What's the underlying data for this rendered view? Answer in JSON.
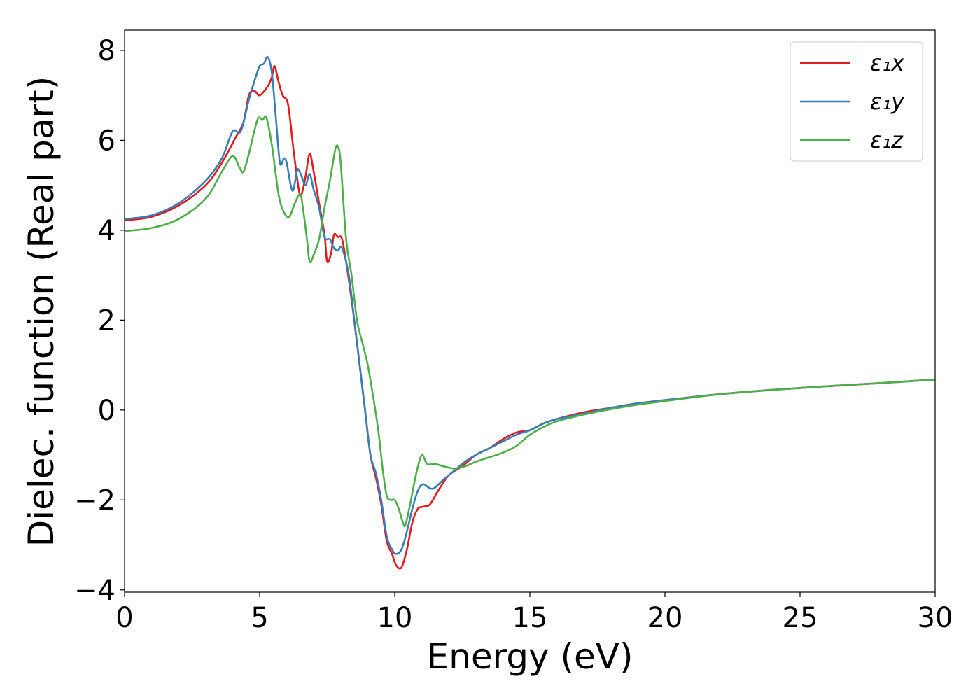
{
  "chart_data": {
    "type": "line",
    "xlabel": "Energy (eV)",
    "ylabel": "Dielec. function (Real part)",
    "xlim": [
      0,
      30
    ],
    "ylim": [
      -4.05,
      8.45
    ],
    "xticks": [
      0,
      5,
      10,
      15,
      20,
      25,
      30
    ],
    "xtick_labels": [
      "0",
      "5",
      "10",
      "15",
      "20",
      "25",
      "30"
    ],
    "yticks": [
      -4,
      -2,
      0,
      2,
      4,
      6,
      8
    ],
    "ytick_labels": [
      "−4",
      "−2",
      "0",
      "2",
      "4",
      "6",
      "8"
    ],
    "grid": false,
    "legend_position": "top-right",
    "series": [
      {
        "name": "ε₁x",
        "color": "#e41a1c",
        "points": [
          [
            0,
            4.22
          ],
          [
            1,
            4.3
          ],
          [
            2,
            4.55
          ],
          [
            3,
            5.0
          ],
          [
            3.6,
            5.5
          ],
          [
            4.1,
            6.05
          ],
          [
            4.4,
            6.4
          ],
          [
            4.6,
            7.0
          ],
          [
            4.8,
            7.1
          ],
          [
            5.0,
            7.0
          ],
          [
            5.3,
            7.2
          ],
          [
            5.45,
            7.4
          ],
          [
            5.55,
            7.65
          ],
          [
            5.7,
            7.3
          ],
          [
            5.85,
            7.0
          ],
          [
            6.05,
            6.8
          ],
          [
            6.25,
            5.8
          ],
          [
            6.45,
            4.9
          ],
          [
            6.55,
            4.8
          ],
          [
            6.7,
            5.2
          ],
          [
            6.85,
            5.7
          ],
          [
            7.0,
            5.3
          ],
          [
            7.2,
            4.6
          ],
          [
            7.4,
            3.9
          ],
          [
            7.5,
            3.3
          ],
          [
            7.65,
            3.5
          ],
          [
            7.75,
            3.9
          ],
          [
            7.9,
            3.85
          ],
          [
            8.05,
            3.8
          ],
          [
            8.25,
            3.1
          ],
          [
            8.5,
            2.0
          ],
          [
            8.7,
            1.0
          ],
          [
            8.9,
            0.0
          ],
          [
            9.1,
            -1.0
          ],
          [
            9.3,
            -1.5
          ],
          [
            9.5,
            -2.1
          ],
          [
            9.7,
            -2.9
          ],
          [
            9.9,
            -3.2
          ],
          [
            10.05,
            -3.45
          ],
          [
            10.25,
            -3.5
          ],
          [
            10.45,
            -3.1
          ],
          [
            10.65,
            -2.5
          ],
          [
            10.85,
            -2.2
          ],
          [
            11.05,
            -2.15
          ],
          [
            11.3,
            -2.1
          ],
          [
            11.6,
            -1.8
          ],
          [
            12.0,
            -1.45
          ],
          [
            12.5,
            -1.25
          ],
          [
            13.0,
            -1.0
          ],
          [
            13.5,
            -0.85
          ],
          [
            14.0,
            -0.65
          ],
          [
            14.5,
            -0.5
          ],
          [
            15.0,
            -0.45
          ],
          [
            15.5,
            -0.3
          ],
          [
            16.0,
            -0.2
          ],
          [
            17.0,
            -0.05
          ],
          [
            18.0,
            0.05
          ],
          [
            19.0,
            0.15
          ],
          [
            20.0,
            0.22
          ],
          [
            22.0,
            0.35
          ],
          [
            24.0,
            0.45
          ],
          [
            26.0,
            0.53
          ],
          [
            28.0,
            0.6
          ],
          [
            30.0,
            0.68
          ]
        ]
      },
      {
        "name": "ε₁y",
        "color": "#377eb8",
        "points": [
          [
            0,
            4.25
          ],
          [
            1,
            4.33
          ],
          [
            2,
            4.6
          ],
          [
            3,
            5.1
          ],
          [
            3.6,
            5.6
          ],
          [
            4.0,
            6.2
          ],
          [
            4.3,
            6.2
          ],
          [
            4.6,
            6.9
          ],
          [
            4.8,
            7.3
          ],
          [
            5.0,
            7.65
          ],
          [
            5.15,
            7.7
          ],
          [
            5.3,
            7.85
          ],
          [
            5.45,
            7.5
          ],
          [
            5.6,
            6.5
          ],
          [
            5.75,
            5.5
          ],
          [
            5.9,
            5.6
          ],
          [
            6.0,
            5.5
          ],
          [
            6.15,
            5.0
          ],
          [
            6.25,
            4.9
          ],
          [
            6.4,
            5.35
          ],
          [
            6.55,
            5.2
          ],
          [
            6.7,
            5.0
          ],
          [
            6.85,
            5.25
          ],
          [
            7.0,
            4.9
          ],
          [
            7.2,
            4.5
          ],
          [
            7.4,
            3.85
          ],
          [
            7.6,
            3.8
          ],
          [
            7.75,
            3.6
          ],
          [
            7.9,
            3.55
          ],
          [
            8.05,
            3.6
          ],
          [
            8.3,
            3.0
          ],
          [
            8.5,
            2.0
          ],
          [
            8.7,
            1.0
          ],
          [
            8.9,
            0.0
          ],
          [
            9.1,
            -1.0
          ],
          [
            9.3,
            -1.4
          ],
          [
            9.5,
            -2.0
          ],
          [
            9.7,
            -2.8
          ],
          [
            9.9,
            -3.1
          ],
          [
            10.05,
            -3.2
          ],
          [
            10.25,
            -3.1
          ],
          [
            10.45,
            -2.7
          ],
          [
            10.65,
            -2.2
          ],
          [
            10.85,
            -1.8
          ],
          [
            11.05,
            -1.65
          ],
          [
            11.4,
            -1.75
          ],
          [
            11.8,
            -1.55
          ],
          [
            12.2,
            -1.35
          ],
          [
            12.6,
            -1.15
          ],
          [
            13.0,
            -1.0
          ],
          [
            13.5,
            -0.85
          ],
          [
            14.0,
            -0.7
          ],
          [
            14.5,
            -0.55
          ],
          [
            15.0,
            -0.45
          ],
          [
            15.5,
            -0.3
          ],
          [
            16.0,
            -0.2
          ],
          [
            17.0,
            -0.08
          ],
          [
            18.0,
            0.05
          ],
          [
            19.0,
            0.15
          ],
          [
            20.0,
            0.22
          ],
          [
            22.0,
            0.35
          ],
          [
            24.0,
            0.45
          ],
          [
            26.0,
            0.53
          ],
          [
            28.0,
            0.6
          ],
          [
            30.0,
            0.68
          ]
        ]
      },
      {
        "name": "ε₁z",
        "color": "#4daf4a",
        "points": [
          [
            0,
            3.98
          ],
          [
            1,
            4.05
          ],
          [
            2,
            4.25
          ],
          [
            3,
            4.7
          ],
          [
            3.6,
            5.3
          ],
          [
            4.0,
            5.65
          ],
          [
            4.25,
            5.4
          ],
          [
            4.4,
            5.3
          ],
          [
            4.6,
            5.7
          ],
          [
            4.8,
            6.2
          ],
          [
            4.95,
            6.5
          ],
          [
            5.1,
            6.45
          ],
          [
            5.25,
            6.5
          ],
          [
            5.45,
            5.9
          ],
          [
            5.7,
            4.8
          ],
          [
            5.9,
            4.4
          ],
          [
            6.1,
            4.3
          ],
          [
            6.3,
            4.6
          ],
          [
            6.5,
            4.8
          ],
          [
            6.6,
            4.5
          ],
          [
            6.75,
            3.8
          ],
          [
            6.85,
            3.3
          ],
          [
            7.0,
            3.45
          ],
          [
            7.2,
            3.8
          ],
          [
            7.4,
            4.5
          ],
          [
            7.6,
            5.1
          ],
          [
            7.8,
            5.8
          ],
          [
            7.9,
            5.85
          ],
          [
            8.0,
            5.5
          ],
          [
            8.2,
            3.8
          ],
          [
            8.4,
            3.0
          ],
          [
            8.6,
            2.0
          ],
          [
            8.8,
            1.5
          ],
          [
            9.0,
            1.0
          ],
          [
            9.2,
            0.3
          ],
          [
            9.4,
            -0.5
          ],
          [
            9.55,
            -1.3
          ],
          [
            9.7,
            -1.9
          ],
          [
            9.85,
            -2.0
          ],
          [
            10.0,
            -2.0
          ],
          [
            10.15,
            -2.2
          ],
          [
            10.3,
            -2.5
          ],
          [
            10.4,
            -2.55
          ],
          [
            10.6,
            -2.0
          ],
          [
            10.8,
            -1.4
          ],
          [
            11.0,
            -1.0
          ],
          [
            11.2,
            -1.2
          ],
          [
            11.5,
            -1.2
          ],
          [
            11.8,
            -1.25
          ],
          [
            12.2,
            -1.3
          ],
          [
            12.6,
            -1.25
          ],
          [
            13.0,
            -1.15
          ],
          [
            13.5,
            -1.05
          ],
          [
            14.0,
            -0.95
          ],
          [
            14.5,
            -0.8
          ],
          [
            15.0,
            -0.55
          ],
          [
            15.5,
            -0.38
          ],
          [
            16.0,
            -0.25
          ],
          [
            17.0,
            -0.1
          ],
          [
            18.0,
            0.02
          ],
          [
            19.0,
            0.12
          ],
          [
            20.0,
            0.2
          ],
          [
            22.0,
            0.35
          ],
          [
            24.0,
            0.45
          ],
          [
            26.0,
            0.53
          ],
          [
            28.0,
            0.6
          ],
          [
            30.0,
            0.68
          ]
        ]
      }
    ]
  }
}
